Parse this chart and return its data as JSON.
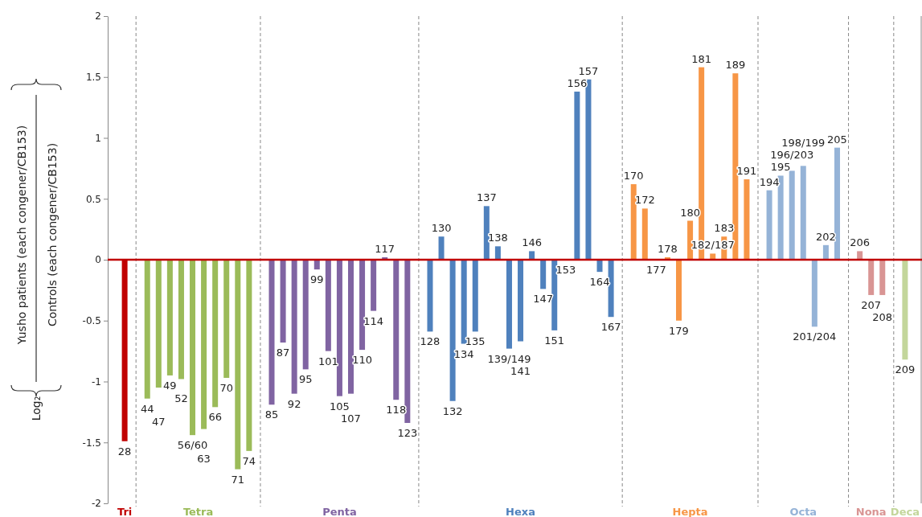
{
  "chart_data": {
    "type": "bar",
    "ylabel": "Log₂",
    "annotations": [
      "Yusho patients  (each congener/CB153)",
      "Controls (each congener/CB153)"
    ],
    "categories": [
      null,
      "28",
      null,
      "44",
      "47",
      "49",
      "52",
      "56/60",
      "63",
      "66",
      "70",
      "71",
      "74",
      null,
      "85",
      "87",
      "92",
      "95",
      "99",
      "101",
      "105",
      "107",
      "110",
      "114",
      "117",
      "118",
      "123",
      null,
      "128",
      "130",
      "132",
      "134",
      "135",
      "137",
      "138",
      "139/149",
      "141",
      "146",
      "147",
      "151",
      "153",
      "156",
      "157",
      "164",
      "167",
      null,
      "170",
      "172",
      "177",
      "178",
      "179",
      "180",
      "181",
      "182/187",
      "183",
      "189",
      "191",
      null,
      "194",
      "195",
      "196/203",
      "198/199",
      "201/204",
      "202",
      "205",
      null,
      "206",
      "207",
      "208",
      null,
      "209",
      null
    ],
    "series": [
      {
        "name": "Tri",
        "color": "#c00000",
        "values": [
          null,
          -1.49,
          null,
          null,
          null,
          null,
          null,
          null,
          null,
          null,
          null,
          null,
          null,
          null,
          null,
          null,
          null,
          null,
          null,
          null,
          null,
          null,
          null,
          null,
          null,
          null,
          null,
          null,
          null,
          null,
          null,
          null,
          null,
          null,
          null,
          null,
          null,
          null,
          null,
          null,
          null,
          null,
          null,
          null,
          null,
          null,
          null,
          null,
          null,
          null,
          null,
          null,
          null,
          null,
          null,
          null,
          null,
          null,
          null,
          null,
          null,
          null,
          null,
          null,
          null,
          null,
          null,
          null,
          null,
          null,
          null,
          null
        ]
      },
      {
        "name": "Tetra",
        "color": "#9bbb59",
        "values": [
          null,
          null,
          null,
          -1.14,
          -1.05,
          -0.95,
          -0.98,
          -1.44,
          -1.39,
          -1.21,
          -0.97,
          -1.72,
          -1.57,
          null,
          null,
          null,
          null,
          null,
          null,
          null,
          null,
          null,
          null,
          null,
          null,
          null,
          null,
          null,
          null,
          null,
          null,
          null,
          null,
          null,
          null,
          null,
          null,
          null,
          null,
          null,
          null,
          null,
          null,
          null,
          null,
          null,
          null,
          null,
          null,
          null,
          null,
          null,
          null,
          null,
          null,
          null,
          null,
          null,
          null,
          null,
          null,
          null,
          null,
          null,
          null,
          null,
          null,
          null,
          null,
          null,
          null,
          null
        ]
      },
      {
        "name": "Penta",
        "color": "#8064a2",
        "values": [
          null,
          null,
          null,
          null,
          null,
          null,
          null,
          null,
          null,
          null,
          null,
          null,
          null,
          null,
          -1.19,
          -0.68,
          -1.1,
          -0.9,
          -0.08,
          -0.75,
          -1.12,
          -1.1,
          -0.74,
          -0.42,
          0.02,
          -1.15,
          -1.34,
          null,
          null,
          null,
          null,
          null,
          null,
          null,
          null,
          null,
          null,
          null,
          null,
          null,
          null,
          null,
          null,
          null,
          null,
          null,
          null,
          null,
          null,
          null,
          null,
          null,
          null,
          null,
          null,
          null,
          null,
          null,
          null,
          null,
          null,
          null,
          null,
          null,
          null,
          null,
          null,
          null,
          null,
          null,
          null,
          null
        ]
      },
      {
        "name": "Hexa",
        "color": "#4f81bd",
        "values": [
          null,
          null,
          null,
          null,
          null,
          null,
          null,
          null,
          null,
          null,
          null,
          null,
          null,
          null,
          null,
          null,
          null,
          null,
          null,
          null,
          null,
          null,
          null,
          null,
          null,
          null,
          null,
          null,
          -0.59,
          0.19,
          -1.16,
          -0.69,
          -0.59,
          0.44,
          0.11,
          -0.73,
          -0.67,
          0.07,
          -0.24,
          -0.58,
          0,
          1.38,
          1.48,
          -0.1,
          -0.47,
          null,
          null,
          null,
          null,
          null,
          null,
          null,
          null,
          null,
          null,
          null,
          null,
          null,
          null,
          null,
          null,
          null,
          null,
          null,
          null,
          null,
          null,
          null,
          null,
          null,
          null,
          null
        ]
      },
      {
        "name": "Hepta",
        "color": "#f79646",
        "values": [
          null,
          null,
          null,
          null,
          null,
          null,
          null,
          null,
          null,
          null,
          null,
          null,
          null,
          null,
          null,
          null,
          null,
          null,
          null,
          null,
          null,
          null,
          null,
          null,
          null,
          null,
          null,
          null,
          null,
          null,
          null,
          null,
          null,
          null,
          null,
          null,
          null,
          null,
          null,
          null,
          null,
          null,
          null,
          null,
          null,
          null,
          0.62,
          0.42,
          0,
          0.02,
          -0.5,
          0.32,
          1.58,
          0.05,
          0.19,
          1.53,
          0.66,
          null,
          null,
          null,
          null,
          null,
          null,
          null,
          null,
          null,
          null,
          null,
          null,
          null,
          null,
          null
        ]
      },
      {
        "name": "Octa",
        "color": "#95b3d7",
        "values": [
          null,
          null,
          null,
          null,
          null,
          null,
          null,
          null,
          null,
          null,
          null,
          null,
          null,
          null,
          null,
          null,
          null,
          null,
          null,
          null,
          null,
          null,
          null,
          null,
          null,
          null,
          null,
          null,
          null,
          null,
          null,
          null,
          null,
          null,
          null,
          null,
          null,
          null,
          null,
          null,
          null,
          null,
          null,
          null,
          null,
          null,
          null,
          null,
          null,
          null,
          null,
          null,
          null,
          null,
          null,
          null,
          null,
          null,
          0.57,
          0.69,
          0.73,
          0.77,
          -0.55,
          0.12,
          0.92,
          null,
          null,
          null,
          null,
          null,
          null,
          null
        ]
      },
      {
        "name": "Nona",
        "color": "#d99594",
        "values": [
          null,
          null,
          null,
          null,
          null,
          null,
          null,
          null,
          null,
          null,
          null,
          null,
          null,
          null,
          null,
          null,
          null,
          null,
          null,
          null,
          null,
          null,
          null,
          null,
          null,
          null,
          null,
          null,
          null,
          null,
          null,
          null,
          null,
          null,
          null,
          null,
          null,
          null,
          null,
          null,
          null,
          null,
          null,
          null,
          null,
          null,
          null,
          null,
          null,
          null,
          null,
          null,
          null,
          null,
          null,
          null,
          null,
          null,
          null,
          null,
          null,
          null,
          null,
          null,
          null,
          null,
          0.07,
          -0.29,
          -0.29,
          null,
          null,
          null
        ]
      },
      {
        "name": "Deca",
        "color": "#c3d69b",
        "values": [
          null,
          null,
          null,
          null,
          null,
          null,
          null,
          null,
          null,
          null,
          null,
          null,
          null,
          null,
          null,
          null,
          null,
          null,
          null,
          null,
          null,
          null,
          null,
          null,
          null,
          null,
          null,
          null,
          null,
          null,
          null,
          null,
          null,
          null,
          null,
          null,
          null,
          null,
          null,
          null,
          null,
          null,
          null,
          null,
          null,
          null,
          null,
          null,
          null,
          null,
          null,
          null,
          null,
          null,
          null,
          null,
          null,
          null,
          null,
          null,
          null,
          null,
          null,
          null,
          null,
          null,
          null,
          null,
          null,
          null,
          -0.82,
          null
        ]
      }
    ],
    "grid": "x",
    "ylim": [
      -2,
      2
    ],
    "yticks": [
      -2,
      -1.5,
      -1,
      -0.5,
      0,
      0.5,
      1,
      1.5,
      2
    ],
    "ref_lines": [
      {
        "axis": "y",
        "value": 0,
        "color": "#c00000"
      }
    ]
  }
}
